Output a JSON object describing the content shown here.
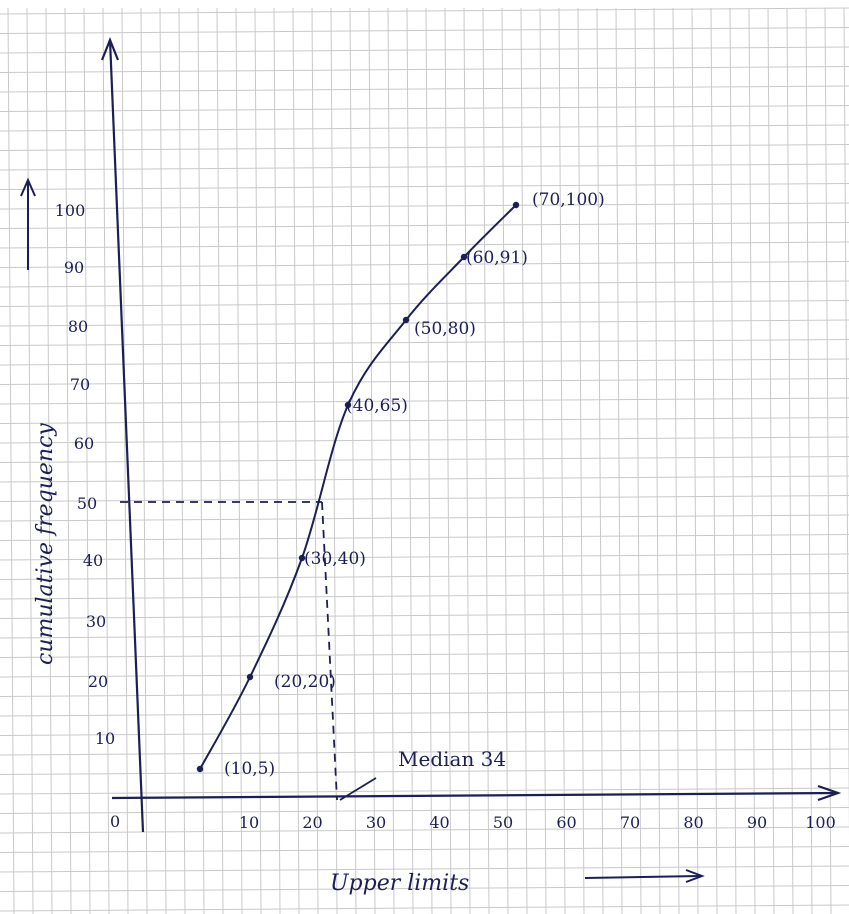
{
  "chart_data": {
    "type": "line",
    "title": "",
    "xlabel": "Upper limits",
    "ylabel": "cumulative frequency",
    "origin_label": "0",
    "x_ticks": [
      "10",
      "20",
      "30",
      "40",
      "50",
      "60",
      "70",
      "80",
      "90",
      "100"
    ],
    "y_ticks": [
      "10",
      "20",
      "30",
      "40",
      "50",
      "60",
      "70",
      "80",
      "90",
      "100"
    ],
    "xlim": [
      0,
      100
    ],
    "ylim": [
      0,
      100
    ],
    "grid": true,
    "series": [
      {
        "x": [
          10,
          20,
          30,
          40,
          50,
          60,
          70
        ],
        "y": [
          5,
          20,
          40,
          65,
          80,
          91,
          100
        ],
        "labels": [
          "(10,5)",
          "(20,20)",
          "(30,40)",
          "(40,65)",
          "(50,80)",
          "(60,91)",
          "(70,100)"
        ]
      }
    ],
    "median_guide": {
      "x": 34,
      "y": 50
    },
    "annotation": "Median 34",
    "colors": {
      "ink": "#1b1f55",
      "grid": "#c9c9c9",
      "paper": "#ffffff"
    }
  }
}
